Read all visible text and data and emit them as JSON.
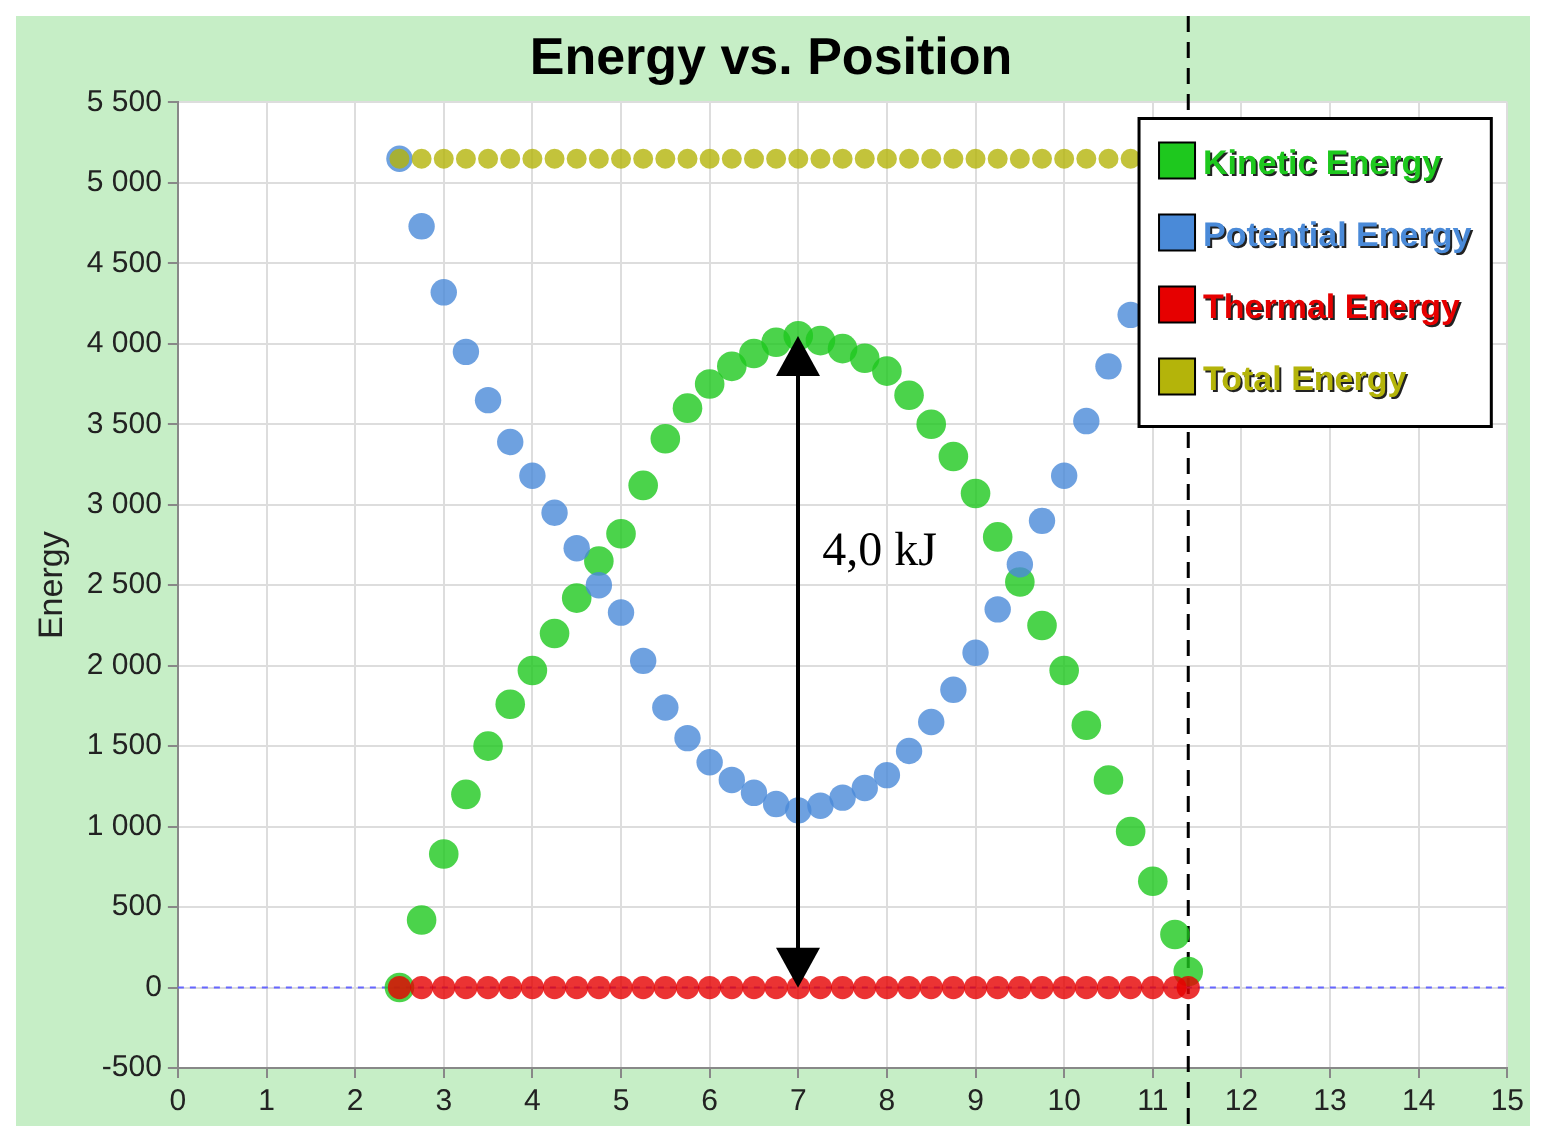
{
  "chart_data": {
    "type": "scatter",
    "title": "Energy vs. Position",
    "ylabel": "Energy",
    "x": [
      2.5,
      2.75,
      3,
      3.25,
      3.5,
      3.75,
      4,
      4.25,
      4.5,
      4.75,
      5,
      5.25,
      5.5,
      5.75,
      6,
      6.25,
      6.5,
      6.75,
      7,
      7.25,
      7.5,
      7.75,
      8,
      8.25,
      8.5,
      8.75,
      9,
      9.25,
      9.5,
      9.75,
      10,
      10.25,
      10.5,
      10.75,
      11,
      11.25,
      11.4
    ],
    "series": [
      {
        "name": "Kinetic Energy",
        "color": "#1ec81e",
        "values": [
          0,
          420,
          830,
          1200,
          1500,
          1760,
          1970,
          2200,
          2420,
          2650,
          2820,
          3120,
          3410,
          3600,
          3750,
          3860,
          3940,
          4010,
          4050,
          4020,
          3970,
          3910,
          3830,
          3680,
          3500,
          3300,
          3070,
          2800,
          2520,
          2250,
          1970,
          1630,
          1290,
          970,
          660,
          330,
          100
        ]
      },
      {
        "name": "Potential Energy",
        "color": "#4a8ad8",
        "values": [
          5150,
          4730,
          4320,
          3950,
          3650,
          3390,
          3180,
          2950,
          2730,
          2500,
          2330,
          2030,
          1740,
          1550,
          1400,
          1290,
          1210,
          1140,
          1100,
          1130,
          1180,
          1240,
          1320,
          1470,
          1650,
          1850,
          2080,
          2350,
          2630,
          2900,
          3180,
          3520,
          3860,
          4180,
          null,
          null,
          null
        ]
      },
      {
        "name": "Thermal Energy",
        "color": "#e60000",
        "values": [
          0,
          0,
          0,
          0,
          0,
          0,
          0,
          0,
          0,
          0,
          0,
          0,
          0,
          0,
          0,
          0,
          0,
          0,
          0,
          0,
          0,
          0,
          0,
          0,
          0,
          0,
          0,
          0,
          0,
          0,
          0,
          0,
          0,
          0,
          0,
          0,
          0
        ]
      },
      {
        "name": "Total Energy",
        "color": "#b4b40a",
        "values": [
          5150,
          5150,
          5150,
          5150,
          5150,
          5150,
          5150,
          5150,
          5150,
          5150,
          5150,
          5150,
          5150,
          5150,
          5150,
          5150,
          5150,
          5150,
          5150,
          5150,
          5150,
          5150,
          5150,
          5150,
          5150,
          5150,
          5150,
          5150,
          5150,
          5150,
          5150,
          5150,
          5150,
          5150,
          null,
          null,
          null
        ]
      }
    ],
    "xlim": [
      0,
      15
    ],
    "xticks": [
      0,
      1,
      2,
      3,
      4,
      5,
      6,
      7,
      8,
      9,
      10,
      11,
      12,
      13,
      14,
      15
    ],
    "ylim": [
      -500,
      5500
    ],
    "yticks": [
      {
        "value": -500,
        "label": "-500"
      },
      0,
      500,
      {
        "value": 1000,
        "label": "1 000"
      },
      {
        "value": 1500,
        "label": "1 500"
      },
      {
        "value": 2000,
        "label": "2 000"
      },
      {
        "value": 2500,
        "label": "2 500"
      },
      {
        "value": 3000,
        "label": "3 000"
      },
      {
        "value": 3500,
        "label": "3 500"
      },
      {
        "value": 4000,
        "label": "4 000"
      },
      {
        "value": 4500,
        "label": "4 500"
      },
      {
        "value": 5000,
        "label": "5 000"
      },
      {
        "value": 5500,
        "label": "5 500"
      }
    ],
    "ref_lines": [
      {
        "axis": "x",
        "value": 11.4,
        "color": "#000000",
        "line_style": "dashed"
      },
      {
        "axis": "y",
        "value": 0,
        "color": "#6666ff",
        "line_style": "dotted"
      }
    ],
    "annotations": [
      "4,0 kJ"
    ],
    "grid": true,
    "legend": "top right",
    "marker": "circle"
  }
}
